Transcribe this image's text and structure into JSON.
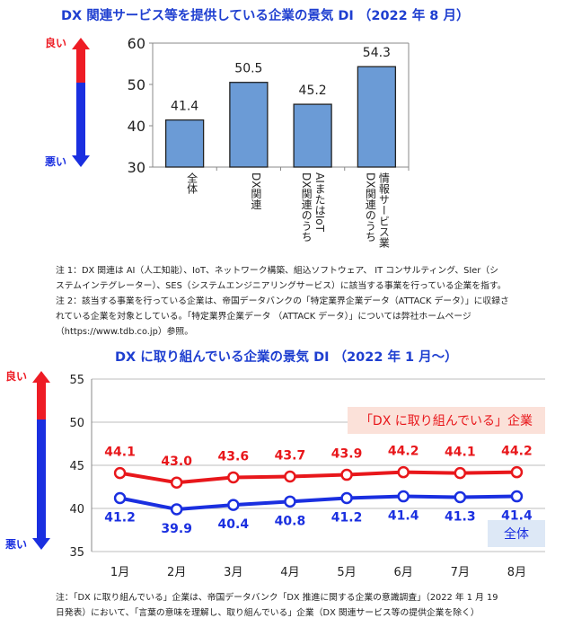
{
  "chart_data": [
    {
      "type": "bar",
      "title": "DX 関連サービス等を提供している企業の景気 DI （2022 年 8 月）",
      "categories": [
        "全体",
        "DX関連",
        "DX関連のうちAIまたはIoT",
        "DX関連のうち情報サービス業"
      ],
      "category_lines": [
        [
          "全体"
        ],
        [
          "DX関連"
        ],
        [
          "DX関連のうち",
          "AIまたはIoT"
        ],
        [
          "DX関連のうち",
          "情報サービス業"
        ]
      ],
      "values": [
        41.4,
        50.5,
        45.2,
        54.3
      ],
      "ylim": [
        30,
        60
      ],
      "yticks": [
        30,
        40,
        50,
        60
      ],
      "grid": false,
      "bar_color": "#6b9bd6",
      "arrow_top_label": "良い",
      "arrow_bottom_label": "悪い"
    },
    {
      "type": "line",
      "title": "DX に取り組んでいる企業の景気 DI （2022 年 1 月～）",
      "categories": [
        "1月",
        "2月",
        "3月",
        "4月",
        "5月",
        "6月",
        "7月",
        "8月"
      ],
      "series": [
        {
          "name": "「DX に取り組んでいる」企業",
          "values": [
            44.1,
            43.0,
            43.6,
            43.7,
            43.9,
            44.2,
            44.1,
            44.2
          ],
          "color": "#e8171b"
        },
        {
          "name": "全体",
          "values": [
            41.2,
            39.9,
            40.4,
            40.8,
            41.2,
            41.4,
            41.3,
            41.4
          ],
          "color": "#1a2fe0"
        }
      ],
      "ylim": [
        35,
        55
      ],
      "yticks": [
        35,
        40,
        45,
        50,
        55
      ],
      "grid": true,
      "legend_placement": "right",
      "arrow_top_label": "良い",
      "arrow_bottom_label": "悪い"
    }
  ],
  "notes_top": [
    "注 1：DX 関連は AI（人工知能）、IoT、ネットワーク構築、組込ソフトウェア、 IT コンサルティング、SIer（シ",
    "ステムインテグレーター）、SES（システムエンジニアリングサービス）に該当する事業を行っている企業を指す。",
    "注 2：該当する事業を行っている企業は、帝国データバンクの「特定業界企業データ（ATTACK データ）」に収録さ",
    "れている企業を対象としている。「特定業界企業データ （ATTACK データ）」については弊社ホームページ",
    "（https://www.tdb.co.jp）参照。"
  ],
  "notes_bottom": [
    "注：「DX に取り組んでいる」企業は、帝国データバンク「DX 推進に関する企業の意識調査」（2022 年 1 月 19",
    "日発表）において、「言葉の意味を理解し、取り組んでいる」企業（DX 関連サービス等の提供企業を除く）"
  ]
}
